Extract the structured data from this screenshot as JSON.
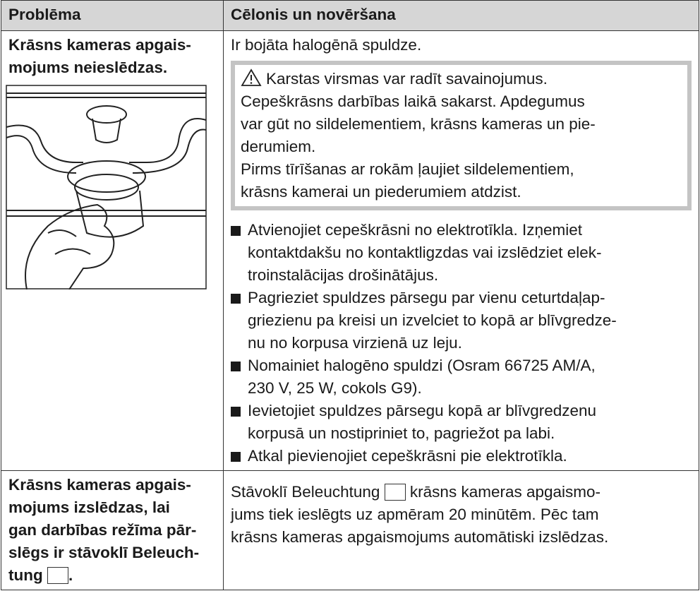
{
  "table": {
    "header": [
      "Problēma",
      "Cēlonis un novēršana"
    ],
    "rows": [
      {
        "problem": "Krāsns kameras apgais-\nmojums neieslēdzas.",
        "cause": "Ir bojāta halogēnā spuldze.",
        "warning": {
          "title": "Karstas virsmas var radīt savainojumus.",
          "paragraphs": [
            "Cepeškrāsns darbības laikā sakarst. Apdegumus\nvar gūt no sildelementiem, krāsns kameras un pie-\nderumiem.",
            "Pirms tīrīšanas ar rokām ļaujiet sildelementiem,\nkrāsns kamerai un piederumiem atdzist."
          ]
        },
        "steps": [
          "Atvienojiet cepeškrāsni no elektrotīkla. Izņemiet\nkontaktdakšu no kontaktligzdas vai izslēdziet elek-\ntroinstalācijas drošinātājus.",
          "Pagrieziet spuldzes pārsegu par vienu ceturtdaļap-\ngriezienu pa kreisi un izvelciet to kopā ar blīvgredze-\nnu no korpusa virzienā uz leju.",
          "Nomainiet halogēno spuldzi (Osram 66725 AM/A,\n230 V, 25 W, cokols G9).",
          "Ievietojiet spuldzes pārsegu kopā ar blīvgredzenu\nkorpusā un nostipriniet to, pagriežot pa labi.",
          "Atkal pievienojiet cepeškrāsni pie elektrotīkla."
        ]
      },
      {
        "problem": "Krāsns kameras apgais-\nmojums izslēdzas, lai\ngan darbības režīma pār-\nslēgs ir stāvoklī Beleuch-\ntung",
        "problem_end": ".",
        "cause_start": "Stāvoklī Beleuchtung",
        "cause_end": "krāsns kameras apgaismo-\njums tiek ieslēgts uz apmēram 20 minūtēm. Pēc tam\nkrāsns kameras apgaismojums automātiski izslēdzas."
      }
    ]
  }
}
